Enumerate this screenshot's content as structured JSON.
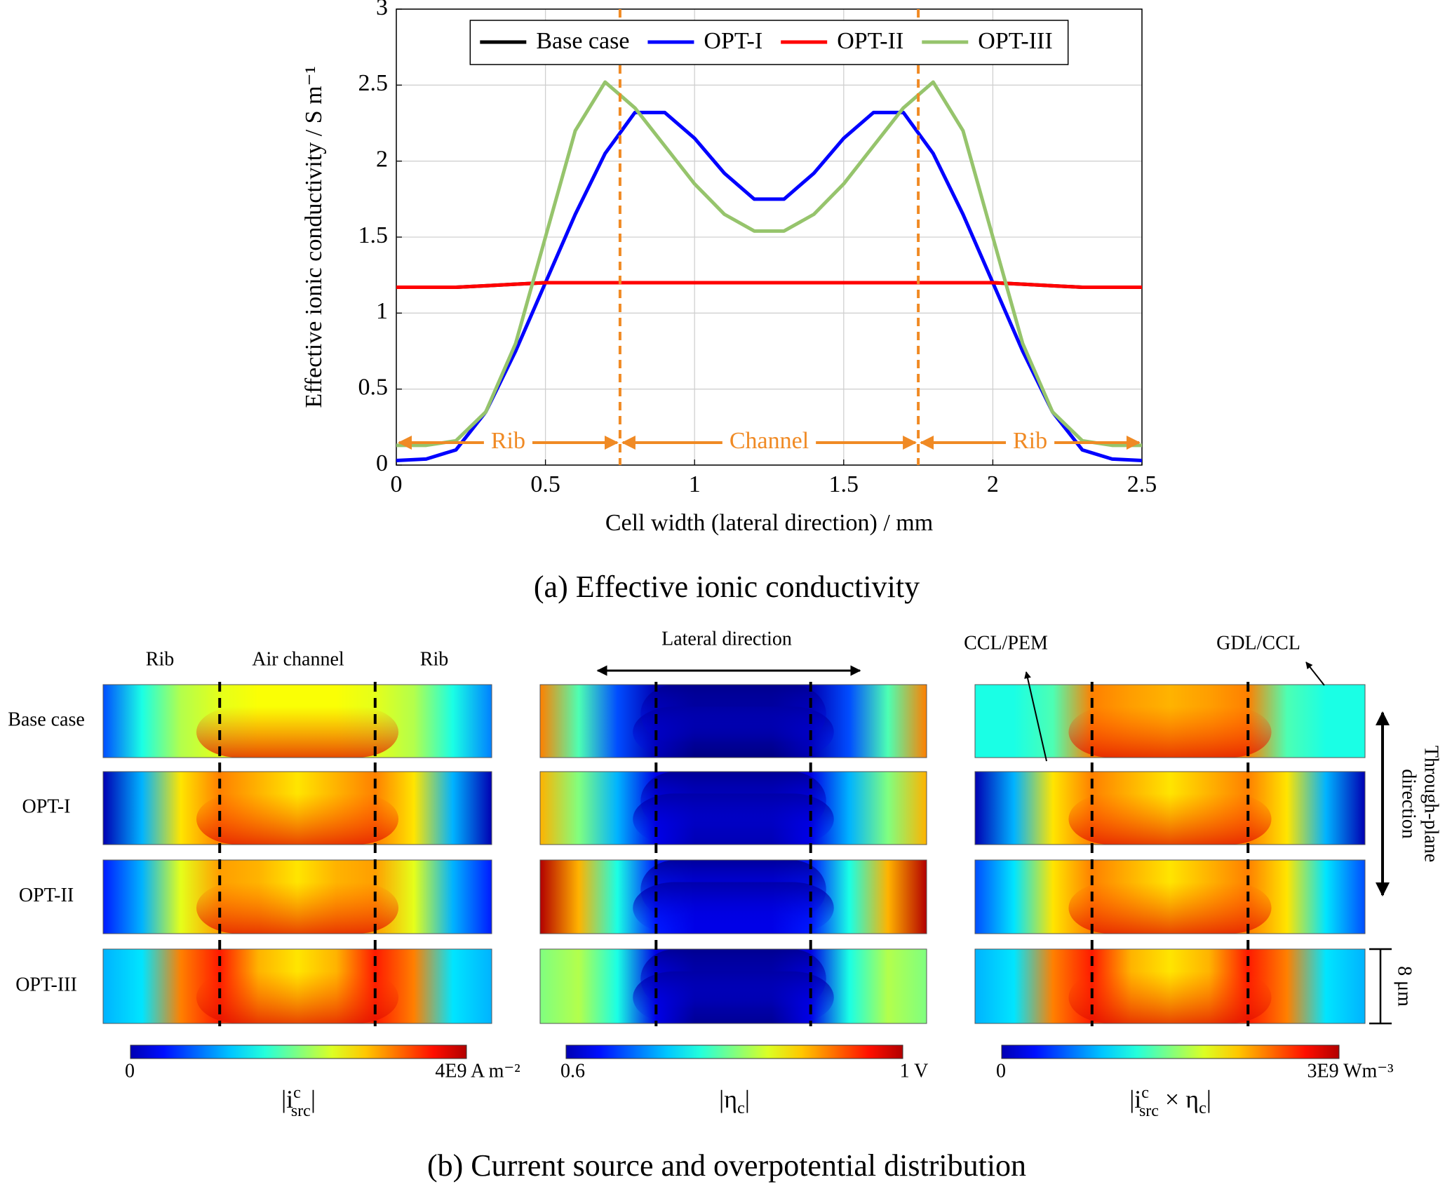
{
  "chart_data": {
    "type": "line",
    "x_label": "Cell width (lateral direction) / mm",
    "y_label": "Effective ionic conductivity / S m⁻¹",
    "x": [
      0,
      0.1,
      0.2,
      0.3,
      0.4,
      0.5,
      0.6,
      0.7,
      0.8,
      0.9,
      1.0,
      1.1,
      1.2,
      1.3,
      1.4,
      1.5,
      1.6,
      1.7,
      1.8,
      1.9,
      2.0,
      2.1,
      2.2,
      2.3,
      2.4,
      2.5
    ],
    "series": [
      {
        "name": "Base case",
        "color": "#000000",
        "values": [
          1.17,
          1.17,
          1.17,
          1.18,
          1.19,
          1.2,
          1.2,
          1.2,
          1.2,
          1.2,
          1.2,
          1.2,
          1.2,
          1.2,
          1.2,
          1.2,
          1.2,
          1.2,
          1.2,
          1.2,
          1.2,
          1.19,
          1.18,
          1.17,
          1.17,
          1.17
        ]
      },
      {
        "name": "OPT-I",
        "color": "#0000ff",
        "values": [
          0.03,
          0.04,
          0.1,
          0.35,
          0.75,
          1.2,
          1.65,
          2.05,
          2.32,
          2.32,
          2.15,
          1.92,
          1.75,
          1.75,
          1.92,
          2.15,
          2.32,
          2.32,
          2.05,
          1.65,
          1.2,
          0.75,
          0.35,
          0.1,
          0.04,
          0.03
        ]
      },
      {
        "name": "OPT-II",
        "color": "#ff0000",
        "values": [
          1.17,
          1.17,
          1.17,
          1.18,
          1.19,
          1.2,
          1.2,
          1.2,
          1.2,
          1.2,
          1.2,
          1.2,
          1.2,
          1.2,
          1.2,
          1.2,
          1.2,
          1.2,
          1.2,
          1.2,
          1.2,
          1.19,
          1.18,
          1.17,
          1.17,
          1.17
        ]
      },
      {
        "name": "OPT-III",
        "color": "#96c46c",
        "values": [
          0.13,
          0.13,
          0.16,
          0.35,
          0.8,
          1.5,
          2.2,
          2.52,
          2.35,
          2.1,
          1.85,
          1.65,
          1.54,
          1.54,
          1.65,
          1.85,
          2.1,
          2.35,
          2.52,
          2.2,
          1.5,
          0.8,
          0.35,
          0.16,
          0.13,
          0.13
        ]
      }
    ],
    "xlim": [
      0,
      2.5
    ],
    "ylim": [
      0,
      3
    ],
    "xticks": [
      0,
      0.5,
      1,
      1.5,
      2,
      2.5
    ],
    "yticks": [
      0,
      0.5,
      1,
      1.5,
      2,
      2.5,
      3
    ],
    "grid": true,
    "legend": "top",
    "dividers": [
      0.75,
      1.75
    ],
    "divider_color": "#f08a24",
    "regions": [
      "Rib",
      "Channel",
      "Rib"
    ],
    "caption": "(a) Effective ionic conductivity"
  },
  "panel_b": {
    "column_headers": [
      "Rib",
      "Air channel",
      "Rib"
    ],
    "lateral_label": "Lateral direction",
    "interface_labels": [
      "CCL/PEM",
      "GDL/CCL"
    ],
    "row_labels": [
      "Base case",
      "OPT-I",
      "OPT-II",
      "OPT-III"
    ],
    "through_plane_label": [
      "Through-plane",
      "direction"
    ],
    "thickness_label": "8 μm",
    "colorbars": [
      {
        "min_label": "0",
        "max_label": "4E9 A m⁻²",
        "symbol": [
          {
            "text": "|i"
          },
          {
            "text": "c",
            "script": "sup"
          },
          {
            "text": "src",
            "script": "sub"
          },
          {
            "text": "|"
          }
        ]
      },
      {
        "min_label": "0.6",
        "max_label": "1 V",
        "symbol": [
          {
            "text": "|η"
          },
          {
            "text": "c",
            "script": "sub"
          },
          {
            "text": "|"
          }
        ]
      },
      {
        "min_label": "0",
        "max_label": "3E9 Wm⁻³",
        "symbol": [
          {
            "text": "|i"
          },
          {
            "text": "c",
            "script": "sup"
          },
          {
            "text": "src",
            "script": "sub"
          },
          {
            "text": " × η"
          },
          {
            "text": "c",
            "script": "sub"
          },
          {
            "text": "|"
          }
        ]
      }
    ],
    "caption": "(b) Current source and overpotential distribution"
  }
}
